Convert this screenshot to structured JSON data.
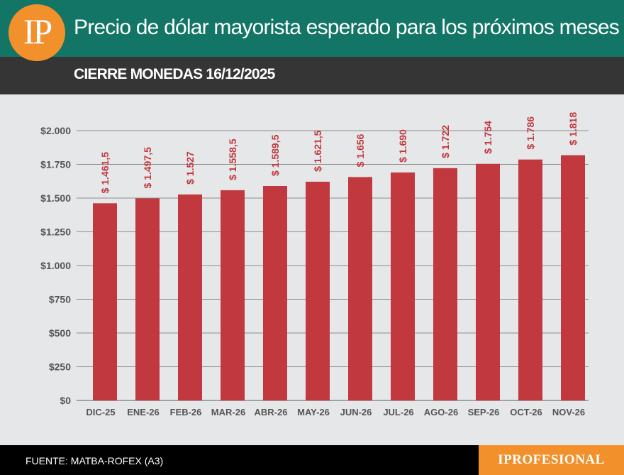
{
  "header": {
    "logo": "IP",
    "title": "Precio de dólar mayorista esperado para los próximos meses"
  },
  "subheader": {
    "title": "CIERRE MONEDAS 16/12/2025"
  },
  "footer": {
    "source": "FUENTE: MATBA-ROFEX (A3)",
    "brand": "IPROFESIONAL"
  },
  "colors": {
    "bar": "#c1393e",
    "label": "#c1393e",
    "header": "#127566",
    "subheader": "#353535",
    "accent": "#f2902c",
    "background": "#e6e7e9"
  },
  "chart_data": {
    "type": "bar",
    "title": "Precio de dólar mayorista esperado para los próximos meses",
    "subtitle": "CIERRE MONEDAS 16/12/2025",
    "xlabel": "",
    "ylabel": "",
    "grid": true,
    "ylim": [
      0,
      2000
    ],
    "yticks": [
      0,
      250,
      500,
      750,
      1000,
      1250,
      1500,
      1750,
      2000
    ],
    "ytick_labels": [
      "$0",
      "$250",
      "$500",
      "$750",
      "$1.000",
      "$1.250",
      "$1.500",
      "$1.750",
      "$2.000"
    ],
    "categories": [
      "DIC-25",
      "ENE-26",
      "FEB-26",
      "MAR-26",
      "ABR-26",
      "MAY-26",
      "JUN-26",
      "JUL-26",
      "AGO-26",
      "SEP-26",
      "OCT-26",
      "NOV-26"
    ],
    "values": [
      1461.5,
      1497.5,
      1527,
      1558.5,
      1589.5,
      1621.5,
      1656,
      1690,
      1722,
      1754,
      1786,
      1818
    ],
    "data_labels": [
      "$ 1.461,5",
      "$ 1.497,5",
      "$ 1.527",
      "$ 1.558,5",
      "$ 1.589,5",
      "$ 1.621,5",
      "$ 1.656",
      "$ 1.690",
      "$ 1.722",
      "$ 1.754",
      "$ 1.786",
      "$ 1.818"
    ]
  }
}
